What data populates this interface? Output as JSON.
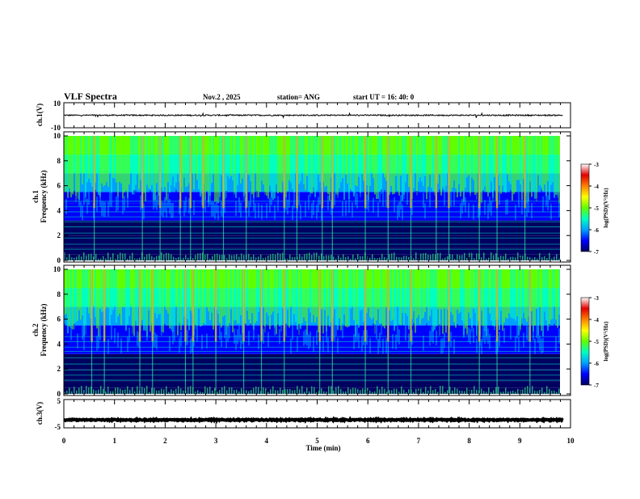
{
  "header": {
    "title": "VLF Spectra",
    "date": "Nov.2  , 2025",
    "station": "station= ANG",
    "start": "start  UT =   16: 40: 0"
  },
  "colorbar": {
    "label": "log(PSD)(V²/Hz)",
    "ticks": [
      "-3",
      "-4",
      "-5",
      "-6",
      "-7"
    ],
    "stops": [
      "#000060",
      "#0000ff",
      "#00a0ff",
      "#00ffc0",
      "#60ff00",
      "#ffff00",
      "#ff8000",
      "#e00000",
      "#ffffff"
    ]
  },
  "chart_data": [
    {
      "type": "line",
      "name": "ch1-waveform",
      "ylabel": "ch.1(V)",
      "ylim": [
        -10,
        10
      ],
      "yticks": [
        "10",
        "-10"
      ],
      "xlim": [
        0,
        10
      ],
      "baseline": 0,
      "noise_amplitude": 0.5
    },
    {
      "type": "heatmap",
      "name": "ch1-spectrogram",
      "ylabel_top": "ch.1",
      "ylabel": "Frequency  (kHz)",
      "ylim": [
        0,
        10
      ],
      "yticks": [
        "10",
        "8",
        "6",
        "4",
        "2",
        "0"
      ],
      "xlim": [
        0,
        10
      ],
      "clim": [
        -7,
        -3
      ],
      "impulse_times_min": [
        0.6,
        1.55,
        1.9,
        2.3,
        2.5,
        2.75,
        3.15,
        3.6,
        4.35,
        4.6,
        5.1,
        5.3,
        5.95,
        6.4,
        6.85,
        7.35,
        7.6,
        8.2,
        8.55,
        9.1
      ],
      "horizontal_lines_khz": [
        0.9,
        1.3,
        1.8,
        2.2,
        2.7,
        3.1,
        3.5,
        3.9,
        4.3,
        4.75
      ]
    },
    {
      "type": "heatmap",
      "name": "ch2-spectrogram",
      "ylabel_top": "ch.2",
      "ylabel": "Frequency  (kHz)",
      "ylim": [
        0,
        10
      ],
      "yticks": [
        "10",
        "8",
        "6",
        "4",
        "2",
        "0"
      ],
      "xlim": [
        0,
        10
      ],
      "clim": [
        -7,
        -3
      ],
      "impulse_times_min": [
        0.55,
        0.8,
        1.5,
        1.75,
        2.4,
        2.55,
        3.0,
        3.55,
        3.9,
        4.35,
        5.05,
        5.3,
        5.95,
        6.4,
        6.85,
        7.6,
        8.2,
        8.55,
        9.2
      ],
      "horizontal_lines_khz": [
        1.1,
        1.5,
        1.9,
        2.4,
        2.9,
        3.4,
        3.75,
        4.2,
        4.6
      ]
    },
    {
      "type": "line",
      "name": "ch3-waveform",
      "ylabel": "ch.3(V)",
      "ylim": [
        -5,
        5
      ],
      "yticks": [
        "5",
        "-5"
      ],
      "xlim": [
        0,
        10
      ],
      "baseline": -2.2,
      "noise_amplitude": 0.2
    }
  ],
  "xaxis": {
    "label": "Time  (min)",
    "ticks": [
      "0",
      "1",
      "2",
      "3",
      "4",
      "5",
      "6",
      "7",
      "8",
      "9",
      "10"
    ]
  }
}
